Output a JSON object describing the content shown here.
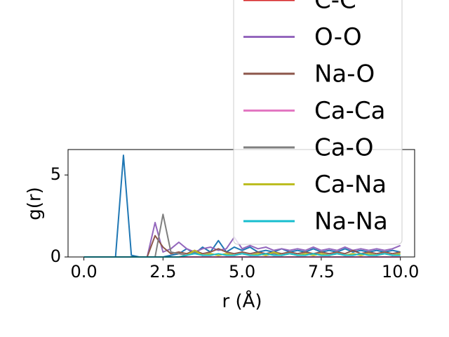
{
  "chart_data": {
    "type": "line",
    "xlabel": "r (Å)",
    "ylabel": "g(r)",
    "x": [
      0,
      0.25,
      0.5,
      0.75,
      1,
      1.25,
      1.5,
      1.75,
      2,
      2.25,
      2.5,
      2.75,
      3,
      3.25,
      3.5,
      3.75,
      4,
      4.25,
      4.5,
      4.75,
      5,
      5.25,
      5.5,
      5.75,
      6,
      6.25,
      6.5,
      6.75,
      7,
      7.25,
      7.5,
      7.75,
      8,
      8.25,
      8.5,
      8.75,
      9,
      9.25,
      9.5,
      9.75,
      10
    ],
    "series": [
      {
        "color": "#1f77b4",
        "values": [
          0,
          0,
          0,
          0,
          0,
          6.2,
          0.1,
          0,
          0,
          0,
          0,
          0.1,
          0.2,
          0.5,
          0.2,
          0.6,
          0.3,
          1.0,
          0.3,
          0.6,
          0.4,
          0.6,
          0.3,
          0.4,
          0.3,
          0.5,
          0.3,
          0.4,
          0.3,
          0.5,
          0.3,
          0.4,
          0.3,
          0.5,
          0.3,
          0.4,
          0.3,
          0.4,
          0.3,
          0.4,
          0.3
        ]
      },
      {
        "name": "C-C",
        "color": "#d62728",
        "values": [
          0,
          0,
          0,
          0,
          0,
          0,
          0,
          0,
          0,
          0,
          0,
          0,
          0,
          0,
          0,
          0,
          0,
          0,
          0,
          0,
          0,
          0,
          0,
          0,
          0,
          0,
          0,
          0,
          0,
          0,
          0,
          0,
          0,
          0,
          0,
          0,
          0,
          0,
          0,
          0,
          0
        ]
      },
      {
        "name": "O-O",
        "color": "#9467bd",
        "values": [
          0,
          0,
          0,
          0,
          0,
          0,
          0,
          0,
          0,
          2.1,
          0.3,
          0.5,
          0.9,
          0.5,
          0.3,
          0.5,
          0.6,
          0.4,
          0.5,
          1.2,
          0.5,
          0.7,
          0.5,
          0.6,
          0.4,
          0.5,
          0.4,
          0.5,
          0.4,
          0.6,
          0.4,
          0.5,
          0.4,
          0.6,
          0.4,
          0.5,
          0.4,
          0.5,
          0.4,
          0.5,
          0.7
        ]
      },
      {
        "name": "Na-O",
        "color": "#8c564b",
        "values": [
          0,
          0,
          0,
          0,
          0,
          0,
          0,
          0,
          0,
          1.3,
          0.6,
          0.2,
          0.3,
          0.2,
          0.4,
          0.2,
          0.3,
          0.5,
          0.3,
          0.2,
          0.3,
          0.2,
          0.3,
          0.2,
          0.3,
          0.2,
          0.3,
          0.2,
          0.3,
          0.2,
          0.3,
          0.2,
          0.3,
          0.2,
          0.4,
          0.2,
          0.3,
          0.2,
          0.3,
          0.2,
          0.3
        ]
      },
      {
        "name": "Ca-Ca",
        "color": "#e377c2",
        "values": [
          0,
          0,
          0,
          0,
          0,
          0,
          0,
          0,
          0,
          0,
          0,
          0,
          0,
          0,
          0,
          0,
          0,
          0,
          0,
          0,
          0,
          0,
          0,
          0,
          0,
          0,
          0,
          0,
          0,
          0,
          0,
          0,
          0,
          0,
          0,
          0,
          0,
          0,
          0,
          0,
          0
        ]
      },
      {
        "name": "Ca-O",
        "color": "#7f7f7f",
        "values": [
          0,
          0,
          0,
          0,
          0,
          0,
          0,
          0,
          0,
          0,
          2.6,
          0.3,
          0.2,
          0.1,
          0.3,
          0.1,
          0.2,
          0.1,
          0.2,
          0.1,
          0.2,
          0.1,
          0.2,
          0.1,
          0.2,
          0.1,
          0.2,
          0.1,
          0.2,
          0.1,
          0.2,
          0.1,
          0.2,
          0.1,
          0.2,
          0.1,
          0.2,
          0.1,
          0.2,
          0.1,
          0.2
        ]
      },
      {
        "name": "Ca-Na",
        "color": "#bcbd22",
        "values": [
          0,
          0,
          0,
          0,
          0,
          0,
          0,
          0,
          0,
          0,
          0,
          0,
          0,
          0.1,
          0.4,
          0.1,
          0.2,
          0.1,
          0.2,
          0.1,
          0.2,
          0.1,
          0.2,
          0.1,
          0.3,
          0.1,
          0.2,
          0.1,
          0.2,
          0.1,
          0.2,
          0.1,
          0.2,
          0.1,
          0.2,
          0.1,
          0.2,
          0.1,
          0.2,
          0.1,
          0.2
        ]
      },
      {
        "name": "Na-Na",
        "color": "#17becf",
        "values": [
          0,
          0,
          0,
          0,
          0,
          0,
          0,
          0,
          0,
          0,
          0,
          0,
          0,
          0.1,
          0.2,
          0.1,
          0.1,
          0.2,
          0.1,
          0.1,
          0.2,
          0.1,
          0.1,
          0.2,
          0.1,
          0.1,
          0.2,
          0.1,
          0.1,
          0.2,
          0.1,
          0.1,
          0.2,
          0.1,
          0.1,
          0.2,
          0.1,
          0.1,
          0.2,
          0.1,
          0.1
        ]
      }
    ],
    "xlim": [
      -0.5,
      10.45
    ],
    "ylim": [
      0,
      6.55
    ],
    "xticks": [
      {
        "value": 0,
        "label": "0.0"
      },
      2.5,
      {
        "value": 5,
        "label": "5.0"
      },
      7.5,
      {
        "value": 10,
        "label": "10.0"
      }
    ],
    "yticks": [
      0,
      5
    ],
    "legend": "upper right"
  }
}
